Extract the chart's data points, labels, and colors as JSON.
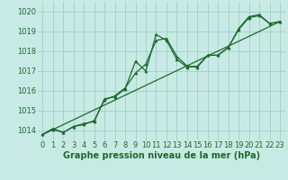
{
  "background_color": "#c8eae5",
  "grid_color": "#9ecfc7",
  "line_color": "#1a6b2a",
  "marker_color": "#1a6b2a",
  "title": "Graphe pression niveau de la mer (hPa)",
  "title_fontsize": 7,
  "tick_fontsize": 6,
  "xlim": [
    -0.5,
    23.5
  ],
  "ylim": [
    1013.5,
    1020.5
  ],
  "yticks": [
    1014,
    1015,
    1016,
    1017,
    1018,
    1019,
    1020
  ],
  "xticks": [
    0,
    1,
    2,
    3,
    4,
    5,
    6,
    7,
    8,
    9,
    10,
    11,
    12,
    13,
    14,
    15,
    16,
    17,
    18,
    19,
    20,
    21,
    22,
    23
  ],
  "series1_x": [
    0,
    1,
    2,
    3,
    4,
    5,
    6,
    7,
    8,
    9,
    10,
    11,
    12,
    13,
    14,
    15,
    16,
    17,
    18,
    19,
    20,
    21,
    22,
    23
  ],
  "series1_y": [
    1013.8,
    1014.1,
    1013.9,
    1014.2,
    1014.3,
    1014.5,
    1015.55,
    1015.75,
    1016.15,
    1016.9,
    1017.35,
    1018.55,
    1018.65,
    1017.75,
    1017.25,
    1017.2,
    1017.8,
    1017.8,
    1018.2,
    1019.15,
    1019.75,
    1019.85,
    1019.4,
    1019.5
  ],
  "series2_x": [
    0,
    1,
    2,
    3,
    4,
    5,
    6,
    7,
    8,
    9,
    10,
    11,
    12,
    13,
    14,
    15,
    16,
    17,
    18,
    19,
    20,
    21,
    22,
    23
  ],
  "series2_y": [
    1013.8,
    1014.05,
    1013.9,
    1014.2,
    1014.35,
    1014.45,
    1015.6,
    1015.7,
    1016.1,
    1017.5,
    1017.0,
    1018.85,
    1018.55,
    1017.6,
    1017.2,
    1017.25,
    1017.8,
    1017.8,
    1018.2,
    1019.1,
    1019.7,
    1019.8,
    1019.4,
    1019.5
  ],
  "series3_x": [
    0,
    23
  ],
  "series3_y": [
    1013.8,
    1019.5
  ]
}
